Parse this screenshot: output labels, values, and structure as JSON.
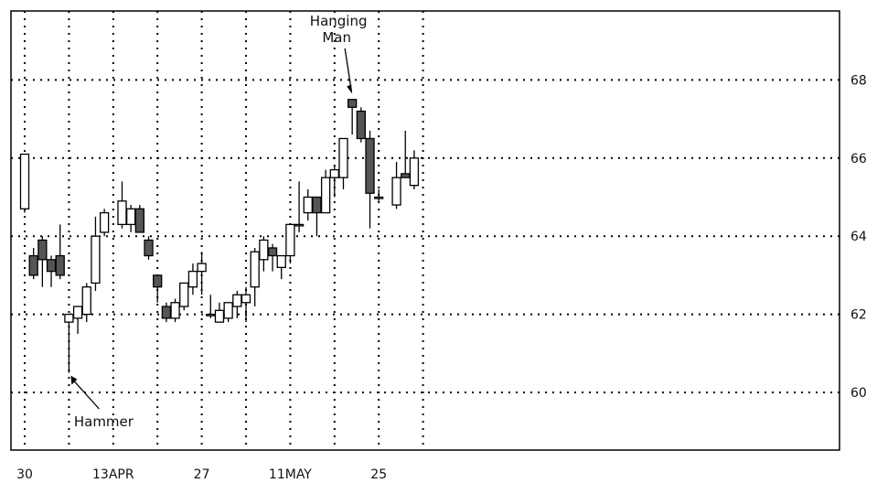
{
  "chart_data": {
    "type": "candlestick",
    "title": "",
    "xlabel": "",
    "ylabel": "",
    "ylim": [
      58.5,
      69.8
    ],
    "y_ticks": [
      60,
      62,
      64,
      66,
      68
    ],
    "y_axis_side": "right",
    "grid": "dotted",
    "x_ticks": [
      {
        "label": "30",
        "day": 0
      },
      {
        "label": "13APR",
        "day": 10
      },
      {
        "label": "27",
        "day": 20
      },
      {
        "label": "11MAY",
        "day": 30
      },
      {
        "label": "25",
        "day": 40
      }
    ],
    "x_grid_days": [
      0,
      5,
      10,
      15,
      20,
      25,
      30,
      35,
      40,
      45
    ],
    "x_range": [
      0,
      46.5
    ],
    "candles": [
      {
        "day": 0,
        "open": 64.7,
        "high": 66.1,
        "low": 64.6,
        "close": 66.1
      },
      {
        "day": 1,
        "open": 63.5,
        "high": 63.7,
        "low": 62.9,
        "close": 63.0
      },
      {
        "day": 2,
        "open": 63.9,
        "high": 64.0,
        "low": 62.7,
        "close": 63.4
      },
      {
        "day": 3,
        "open": 63.4,
        "high": 63.5,
        "low": 62.7,
        "close": 63.1
      },
      {
        "day": 4,
        "open": 63.5,
        "high": 64.3,
        "low": 62.9,
        "close": 63.0
      },
      {
        "day": 5,
        "open": 61.8,
        "high": 62.0,
        "low": 60.5,
        "close": 62.0
      },
      {
        "day": 6,
        "open": 61.9,
        "high": 62.2,
        "low": 61.5,
        "close": 62.2
      },
      {
        "day": 7,
        "open": 62.0,
        "high": 62.8,
        "low": 61.8,
        "close": 62.7
      },
      {
        "day": 8,
        "open": 62.8,
        "high": 64.5,
        "low": 62.6,
        "close": 64.0
      },
      {
        "day": 9,
        "open": 64.1,
        "high": 64.7,
        "low": 64.0,
        "close": 64.6
      },
      {
        "day": 11,
        "open": 64.3,
        "high": 65.4,
        "low": 64.2,
        "close": 64.9
      },
      {
        "day": 12,
        "open": 64.3,
        "high": 64.8,
        "low": 64.1,
        "close": 64.7
      },
      {
        "day": 13,
        "open": 64.7,
        "high": 64.8,
        "low": 64.1,
        "close": 64.1
      },
      {
        "day": 14,
        "open": 63.9,
        "high": 64.0,
        "low": 63.4,
        "close": 63.5
      },
      {
        "day": 15,
        "open": 63.0,
        "high": 63.0,
        "low": 62.3,
        "close": 62.7
      },
      {
        "day": 16,
        "open": 62.2,
        "high": 62.3,
        "low": 61.8,
        "close": 61.9
      },
      {
        "day": 17,
        "open": 61.9,
        "high": 62.4,
        "low": 61.8,
        "close": 62.3
      },
      {
        "day": 18,
        "open": 62.2,
        "high": 62.8,
        "low": 62.1,
        "close": 62.8
      },
      {
        "day": 19,
        "open": 62.7,
        "high": 63.3,
        "low": 62.5,
        "close": 63.1
      },
      {
        "day": 20,
        "open": 63.1,
        "high": 63.6,
        "low": 62.5,
        "close": 63.3
      },
      {
        "day": 21,
        "open": 62.0,
        "high": 62.5,
        "low": 61.9,
        "close": 62.0
      },
      {
        "day": 22,
        "open": 61.8,
        "high": 62.3,
        "low": 61.8,
        "close": 62.1
      },
      {
        "day": 23,
        "open": 61.9,
        "high": 62.3,
        "low": 61.8,
        "close": 62.3
      },
      {
        "day": 24,
        "open": 62.2,
        "high": 62.6,
        "low": 61.9,
        "close": 62.5
      },
      {
        "day": 25,
        "open": 62.3,
        "high": 62.7,
        "low": 61.8,
        "close": 62.5
      },
      {
        "day": 26,
        "open": 62.7,
        "high": 63.7,
        "low": 62.2,
        "close": 63.6
      },
      {
        "day": 27,
        "open": 63.4,
        "high": 64.0,
        "low": 63.1,
        "close": 63.9
      },
      {
        "day": 28,
        "open": 63.7,
        "high": 63.8,
        "low": 63.1,
        "close": 63.5
      },
      {
        "day": 29,
        "open": 63.2,
        "high": 63.5,
        "low": 62.9,
        "close": 63.5
      },
      {
        "day": 30,
        "open": 63.5,
        "high": 64.3,
        "low": 63.3,
        "close": 64.3
      },
      {
        "day": 31,
        "open": 64.3,
        "high": 65.4,
        "low": 64.1,
        "close": 64.3
      },
      {
        "day": 32,
        "open": 64.6,
        "high": 65.2,
        "low": 64.4,
        "close": 65.0
      },
      {
        "day": 33,
        "open": 65.0,
        "high": 65.0,
        "low": 64.0,
        "close": 64.6
      },
      {
        "day": 34,
        "open": 64.6,
        "high": 65.7,
        "low": 64.6,
        "close": 65.5
      },
      {
        "day": 35,
        "open": 65.5,
        "high": 65.8,
        "low": 65.0,
        "close": 65.7
      },
      {
        "day": 36,
        "open": 65.5,
        "high": 66.5,
        "low": 65.2,
        "close": 66.5
      },
      {
        "day": 37,
        "open": 67.5,
        "high": 67.5,
        "low": 66.6,
        "close": 67.3
      },
      {
        "day": 38,
        "open": 67.2,
        "high": 67.3,
        "low": 66.4,
        "close": 66.5
      },
      {
        "day": 39,
        "open": 66.5,
        "high": 66.7,
        "low": 64.2,
        "close": 65.1
      },
      {
        "day": 40,
        "open": 65.0,
        "high": 65.2,
        "low": 64.9,
        "close": 65.0
      },
      {
        "day": 42,
        "open": 64.8,
        "high": 65.9,
        "low": 64.7,
        "close": 65.5
      },
      {
        "day": 43,
        "open": 65.6,
        "high": 66.7,
        "low": 65.5,
        "close": 65.5
      },
      {
        "day": 44,
        "open": 65.3,
        "high": 66.2,
        "low": 65.2,
        "close": 66.0
      }
    ],
    "annotations": [
      {
        "text": "Hammer",
        "day": 5,
        "price": 60.5,
        "lines": [
          "Hammer"
        ]
      },
      {
        "text": "Hanging Man",
        "day": 37,
        "price": 67.6,
        "lines": [
          "Hanging",
          "Man"
        ]
      }
    ],
    "colors": {
      "down_body": "#555555",
      "up_body": "#ffffff",
      "line": "#000000"
    }
  }
}
